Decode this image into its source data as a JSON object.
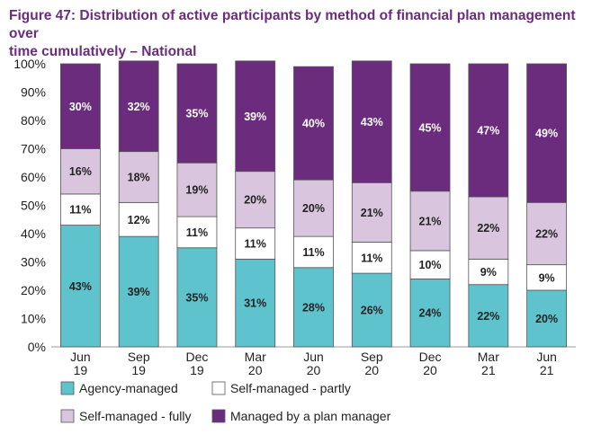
{
  "title": "Figure 47: Distribution of active participants by method of financial plan management over\ntime cumulatively   – National",
  "colors": {
    "title": "#6b2c7d",
    "agency": "#5fc3cd",
    "self_partly": "#ffffff",
    "self_fully": "#d9c5dd",
    "plan_manager": "#6b2c7d",
    "label_dark": "#222222",
    "label_light": "#ffffff",
    "bar_outline": "#555555"
  },
  "chart_data": {
    "type": "bar",
    "stacked": true,
    "normalized": true,
    "title": "Figure 47: Distribution of active participants by method of financial plan management over\ntime cumulatively   – National",
    "categories": [
      [
        "Jun",
        "19"
      ],
      [
        "Sep",
        "19"
      ],
      [
        "Dec",
        "19"
      ],
      [
        "Mar",
        "20"
      ],
      [
        "Jun",
        "20"
      ],
      [
        "Sep",
        "20"
      ],
      [
        "Dec",
        "20"
      ],
      [
        "Mar",
        "21"
      ],
      [
        "Jun",
        "21"
      ]
    ],
    "series": [
      {
        "name": "Agency-managed",
        "color_key": "agency",
        "label_color_key": "label_dark",
        "values": [
          43,
          39,
          35,
          31,
          28,
          26,
          24,
          22,
          20
        ]
      },
      {
        "name": "Self-managed - partly",
        "color_key": "self_partly",
        "label_color_key": "label_dark",
        "values": [
          11,
          12,
          11,
          11,
          11,
          11,
          10,
          9,
          9
        ]
      },
      {
        "name": "Self-managed - fully",
        "color_key": "self_fully",
        "label_color_key": "label_dark",
        "values": [
          16,
          18,
          19,
          20,
          20,
          21,
          21,
          22,
          22
        ]
      },
      {
        "name": "Managed by a plan manager",
        "color_key": "plan_manager",
        "label_color_key": "label_light",
        "values": [
          30,
          32,
          35,
          39,
          40,
          43,
          45,
          47,
          49
        ]
      }
    ],
    "ylim": [
      0,
      100
    ],
    "yticks": [
      "0%",
      "10%",
      "20%",
      "30%",
      "40%",
      "50%",
      "60%",
      "70%",
      "80%",
      "90%",
      "100%"
    ],
    "value_suffix": "%",
    "grid": false,
    "legend_position": "bottom",
    "xlabel": "",
    "ylabel": ""
  }
}
